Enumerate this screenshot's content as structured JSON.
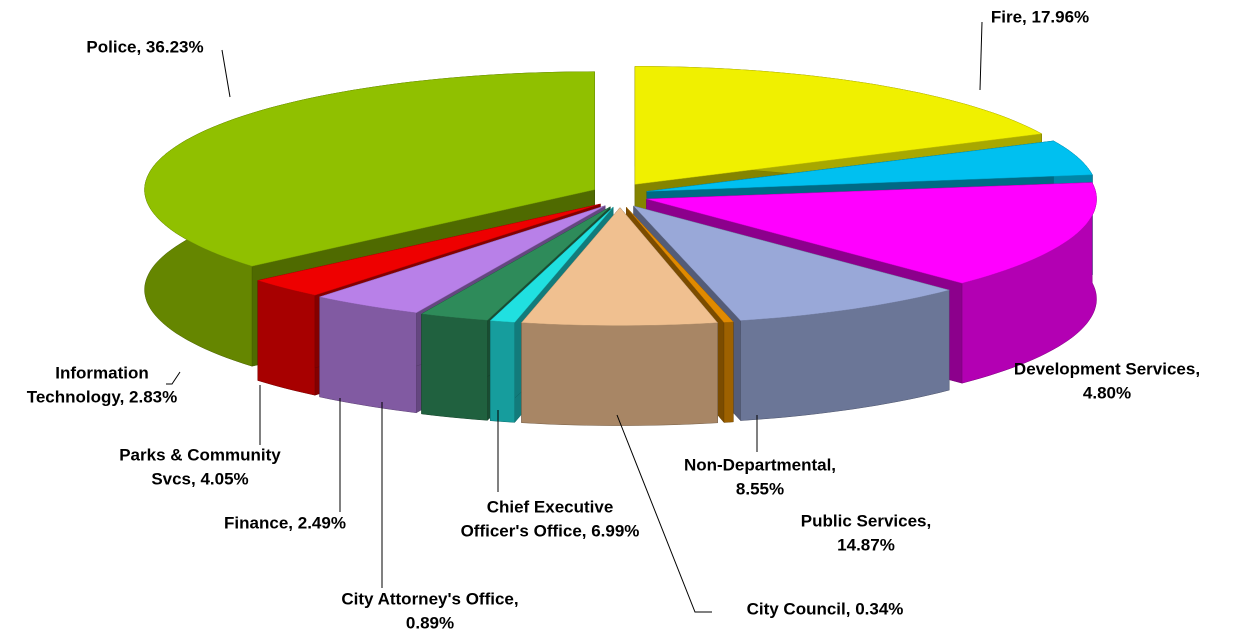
{
  "chart_data": {
    "type": "pie",
    "start_angle": 0,
    "direction": "clockwise",
    "three_d": true,
    "exploded": true,
    "slices": [
      {
        "label": [
          "Fire, 17.96%"
        ],
        "value": 17.96,
        "color": "#f0f000"
      },
      {
        "label": [
          "Development Services,",
          "4.80%"
        ],
        "value": 4.8,
        "color": "#00c0f0"
      },
      {
        "label": [
          "Public Services,",
          "14.87%"
        ],
        "value": 14.87,
        "color": "#ff00ff"
      },
      {
        "label": [
          "Non-Departmental,",
          "8.55%"
        ],
        "value": 8.55,
        "color": "#99a8d8"
      },
      {
        "label": [
          "City Council, 0.34%"
        ],
        "value": 0.34,
        "color": "#e08a00"
      },
      {
        "label": [
          "Chief Executive",
          "Officer's Office, 6.99%"
        ],
        "value": 6.99,
        "color": "#f0c090"
      },
      {
        "label": [
          "City Attorney's Office,",
          "0.89%"
        ],
        "value": 0.89,
        "color": "#20e0e0"
      },
      {
        "label": [
          "Finance, 2.49%"
        ],
        "value": 2.49,
        "color": "#2e8b5a"
      },
      {
        "label": [
          "Parks & Community",
          "Svcs, 4.05%"
        ],
        "value": 4.05,
        "color": "#b880e8"
      },
      {
        "label": [
          "Information",
          "Technology, 2.83%"
        ],
        "value": 2.83,
        "color": "#ee0000"
      },
      {
        "label": [
          "Police, 36.23%"
        ],
        "value": 36.23,
        "color": "#90c000"
      }
    ]
  }
}
